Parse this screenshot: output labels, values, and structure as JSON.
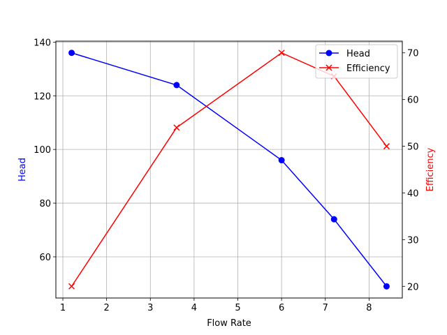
{
  "chart_data": {
    "type": "line",
    "title": "",
    "xlabel": "Flow Rate",
    "ylabel": "Head",
    "y2label": "Efficiency",
    "x": [
      1.2,
      3.6,
      6.0,
      7.2,
      8.4
    ],
    "xlim": [
      0.84,
      8.76
    ],
    "ylim": [
      44.65,
      140.35
    ],
    "y2lim": [
      17.5,
      72.5
    ],
    "xticks": [
      1,
      2,
      3,
      4,
      5,
      6,
      7,
      8
    ],
    "yticks": [
      60,
      80,
      100,
      120,
      140
    ],
    "y2ticks": [
      20,
      30,
      40,
      50,
      60,
      70
    ],
    "grid": true,
    "legend_position": "upper right",
    "series": [
      {
        "name": "Head",
        "axis": "left",
        "values": [
          136,
          124,
          96,
          74,
          49
        ],
        "color": "#0000ff",
        "marker": "circle"
      },
      {
        "name": "Efficiency",
        "axis": "right",
        "values": [
          20,
          54,
          70,
          65,
          50
        ],
        "color": "#ff0000",
        "marker": "x"
      }
    ]
  },
  "colors": {
    "head": "#0000ff",
    "efficiency": "#ff0000",
    "grid": "#b0b0b0",
    "axis": "#000000"
  }
}
